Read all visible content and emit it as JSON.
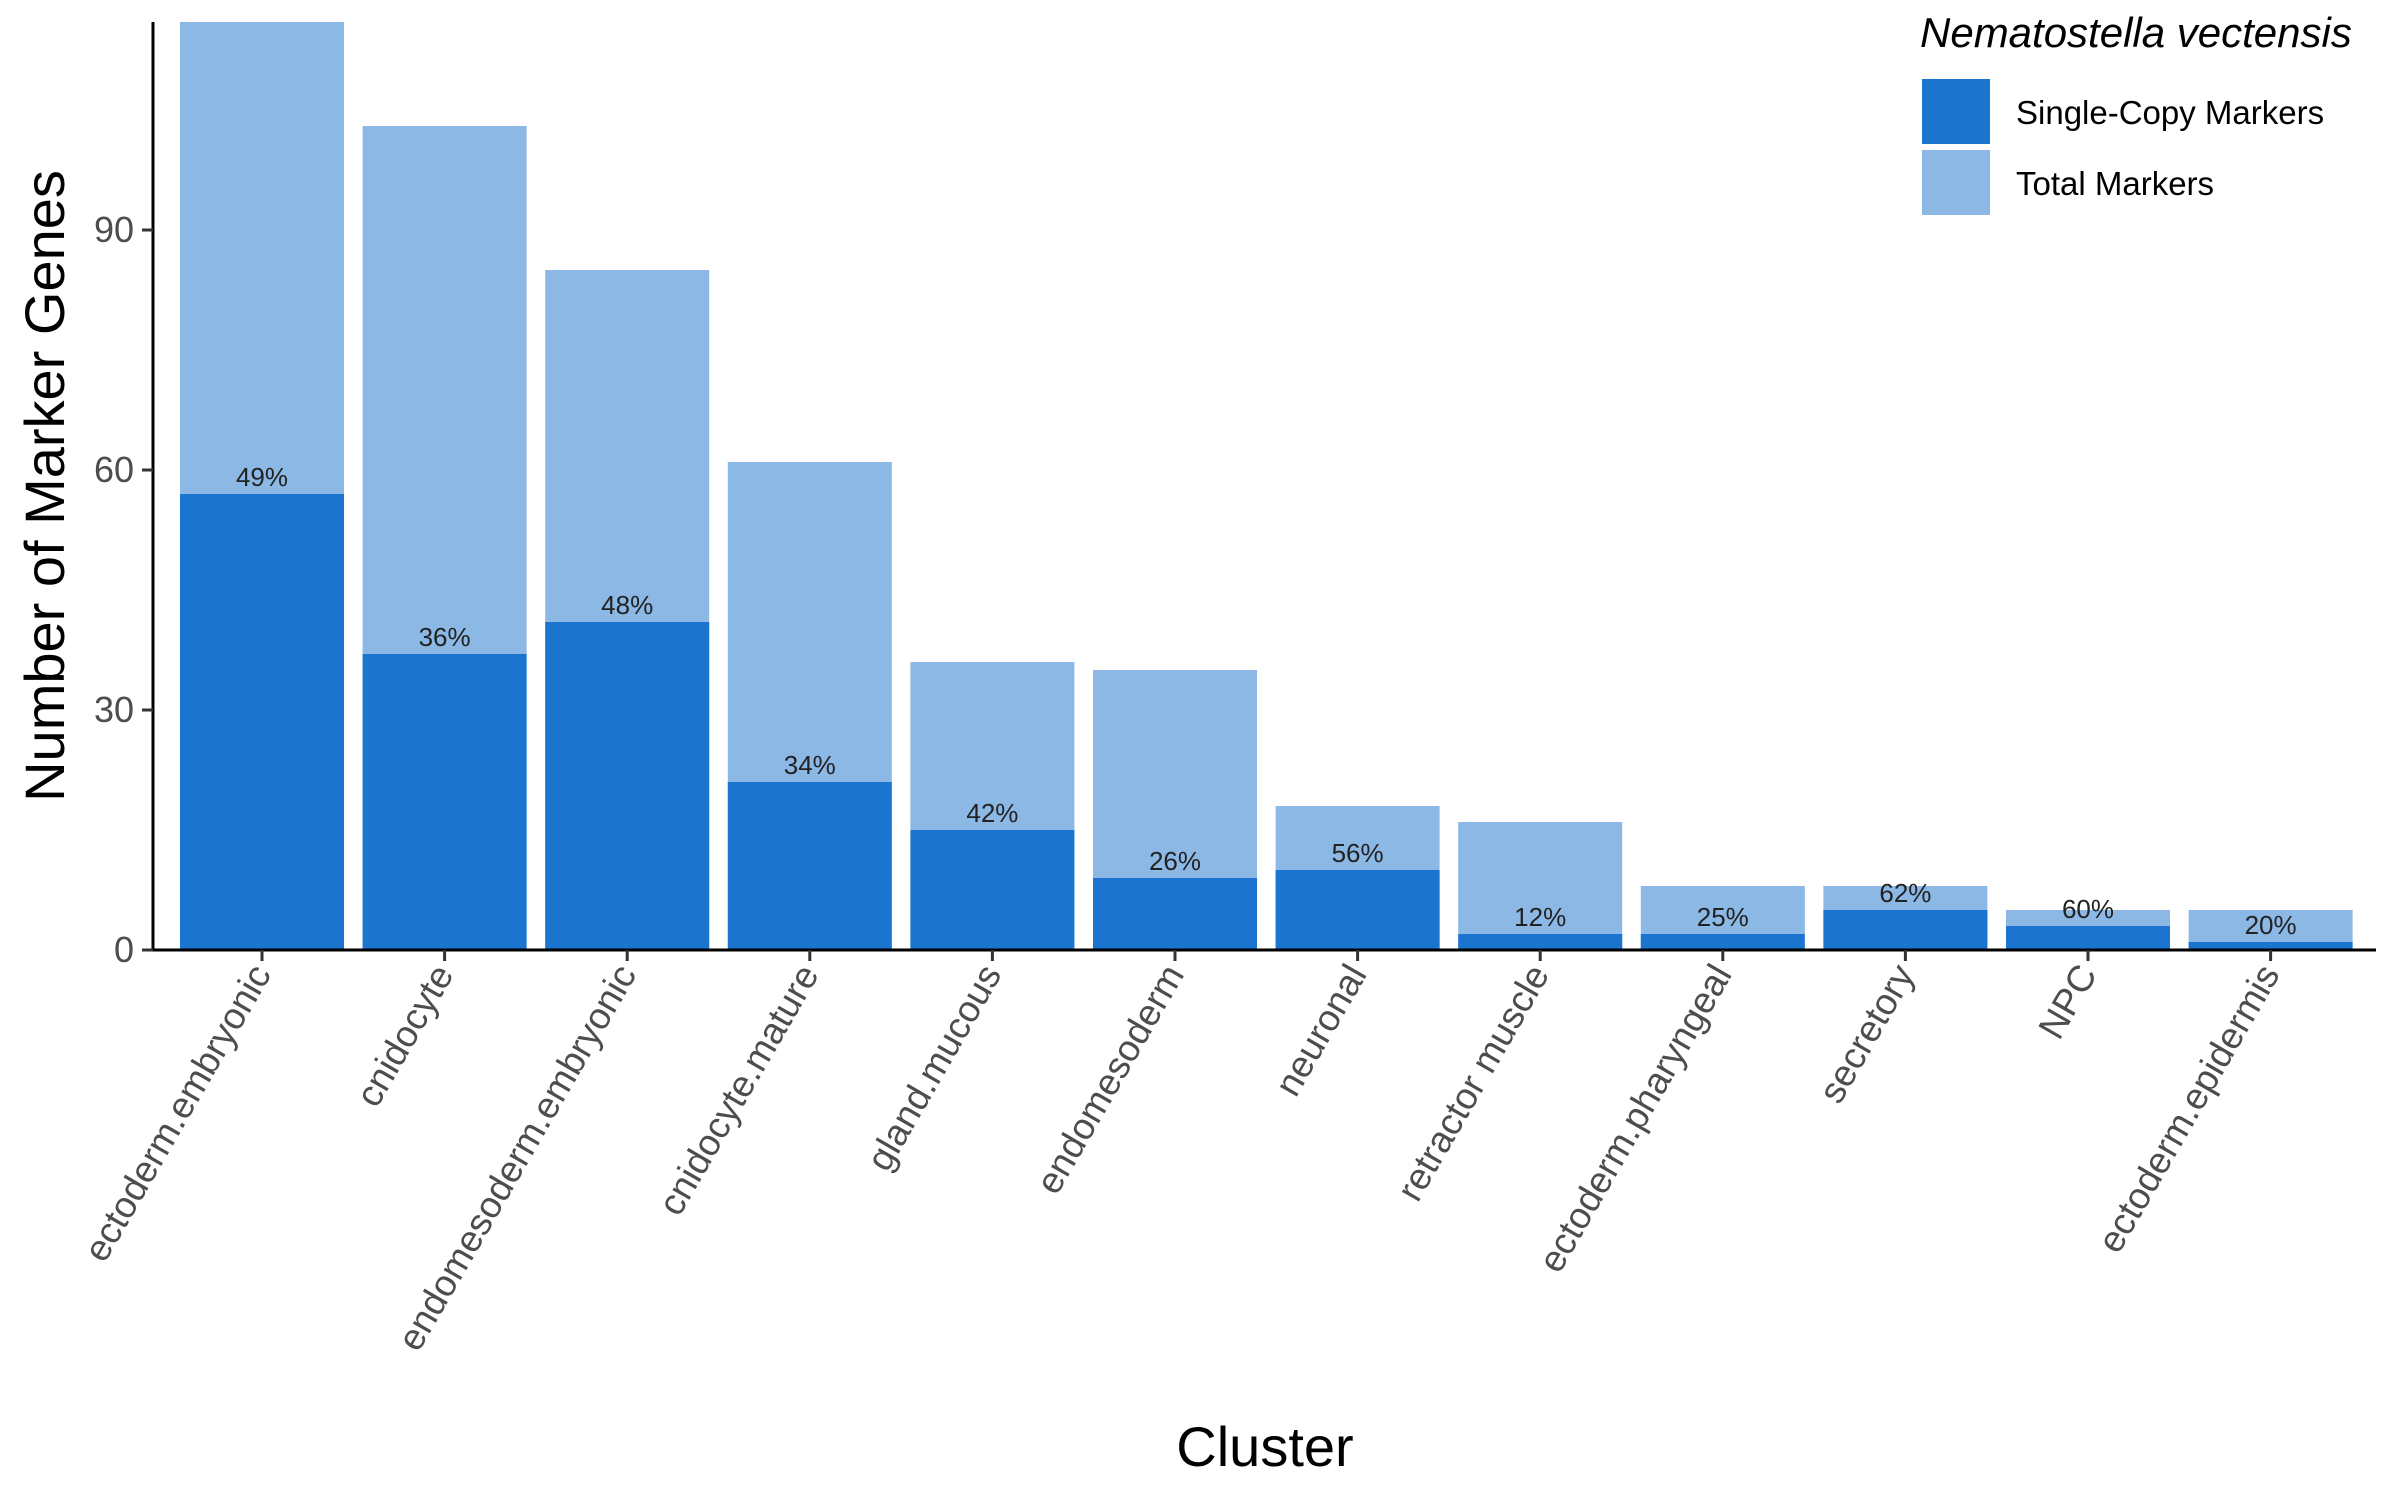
{
  "chart_data": {
    "type": "bar",
    "xlabel": "Cluster",
    "ylabel": "Number of Marker Genes",
    "ylim": [
      0,
      116
    ],
    "y_ticks": [
      0,
      30,
      60,
      90
    ],
    "grid": false,
    "legend_title": "Nematostella vectensis",
    "legend_position": "top-right",
    "categories": [
      "ectoderm.embryonic",
      "cnidocyte",
      "endomesoderm.embryonic",
      "cnidocyte.mature",
      "gland.mucous",
      "endomesoderm",
      "neuronal",
      "retractor muscle",
      "ectoderm.pharyngeal",
      "secretory",
      "NPC",
      "ectoderm.epidermis"
    ],
    "series": [
      {
        "name": "Single-Copy Markers",
        "color": "#1b75cf",
        "values": [
          57,
          37,
          41,
          21,
          15,
          9,
          10,
          2,
          2,
          5,
          3,
          1
        ]
      },
      {
        "name": "Total Markers",
        "color": "#8bb8e5",
        "values": [
          116,
          103,
          85,
          61,
          36,
          35,
          18,
          16,
          8,
          8,
          5,
          5
        ]
      }
    ],
    "data_labels": [
      "49%",
      "36%",
      "48%",
      "34%",
      "42%",
      "26%",
      "56%",
      "12%",
      "25%",
      "62%",
      "60%",
      "20%"
    ]
  }
}
